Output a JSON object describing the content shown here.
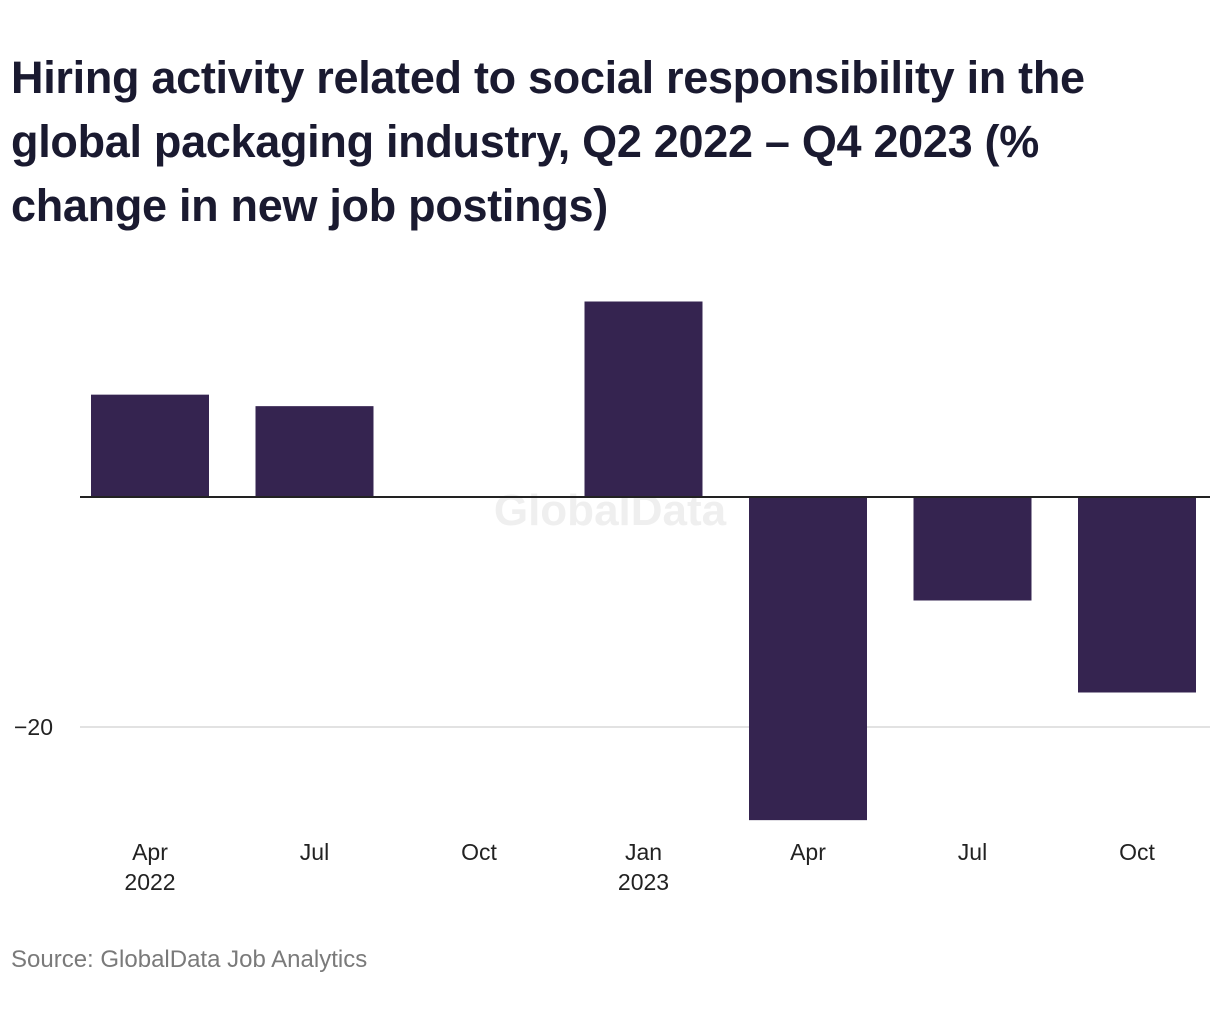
{
  "chart_data": {
    "type": "bar",
    "title": "Hiring activity related to social responsibility in the global packaging industry, Q2 2022 – Q4 2023 (% change in new job postings)",
    "categories": [
      "Apr 2022",
      "Jul 2022",
      "Oct 2022",
      "Jan 2023",
      "Apr 2023",
      "Jul 2023",
      "Oct 2023"
    ],
    "x_tick_labels": [
      {
        "line1": "Apr",
        "line2": "2022"
      },
      {
        "line1": "Jul",
        "line2": ""
      },
      {
        "line1": "Oct",
        "line2": ""
      },
      {
        "line1": "Jan",
        "line2": "2023"
      },
      {
        "line1": "Apr",
        "line2": ""
      },
      {
        "line1": "Jul",
        "line2": ""
      },
      {
        "line1": "Oct",
        "line2": ""
      }
    ],
    "values": [
      8.9,
      7.9,
      0,
      17.0,
      -28.1,
      -9.0,
      -17.0
    ],
    "y_ticks": [
      {
        "value": -20,
        "label": "−20"
      }
    ],
    "ylim": [
      -30,
      20
    ],
    "xlabel": "",
    "ylabel": "",
    "grid": true,
    "legend": "none",
    "bar_color": "#352450",
    "zero_line_color": "#222222",
    "grid_color": "#d9d9d9",
    "watermark": "GlobalData"
  },
  "source": "Source: GlobalData Job Analytics"
}
